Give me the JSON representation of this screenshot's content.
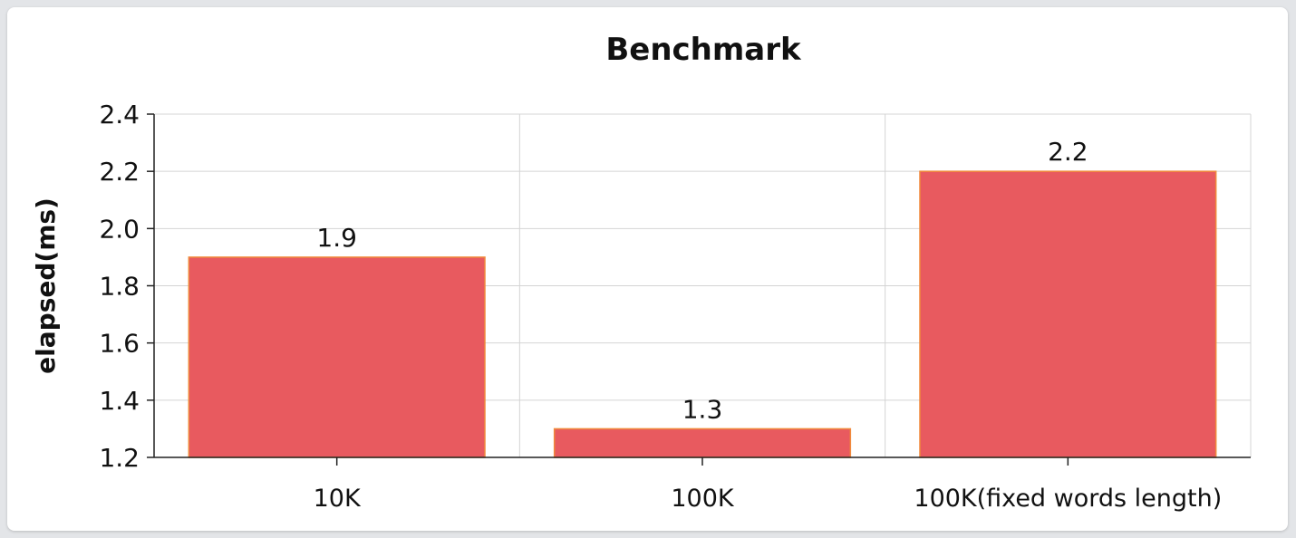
{
  "chart_data": {
    "type": "bar",
    "title": "Benchmark",
    "xlabel": "",
    "ylabel": "elapsed(ms)",
    "ylim": [
      1.2,
      2.4
    ],
    "yticks": [
      "1.2",
      "1.4",
      "1.6",
      "1.8",
      "2.0",
      "2.2",
      "2.4"
    ],
    "categories": [
      "10K",
      "100K",
      "100K(fixed words length)"
    ],
    "values": [
      1.9,
      1.3,
      2.2
    ],
    "data_labels": [
      "1.9",
      "1.3",
      "2.2"
    ],
    "grid": true,
    "bar_color": "#e85a5f",
    "bar_border_color": "#f08a3c"
  }
}
